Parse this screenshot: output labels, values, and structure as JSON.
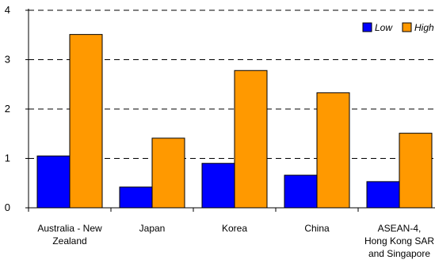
{
  "chart_data": {
    "type": "bar",
    "categories": [
      [
        "Australia - New",
        "Zealand"
      ],
      [
        "Japan"
      ],
      [
        "Korea"
      ],
      [
        "China"
      ],
      [
        "ASEAN-4,",
        "Hong Kong SAR",
        "and Singapore"
      ]
    ],
    "series": [
      {
        "name": "Low",
        "color": "#0000ff",
        "values": [
          1.05,
          0.42,
          0.9,
          0.66,
          0.53
        ]
      },
      {
        "name": "High",
        "color": "#ff9900",
        "values": [
          3.51,
          1.41,
          2.78,
          2.33,
          1.51
        ]
      }
    ],
    "yticks": [
      "0",
      "1",
      "2",
      "3",
      "4"
    ],
    "ylim": [
      0,
      4
    ],
    "grid": true,
    "legend_position": "top-right"
  }
}
